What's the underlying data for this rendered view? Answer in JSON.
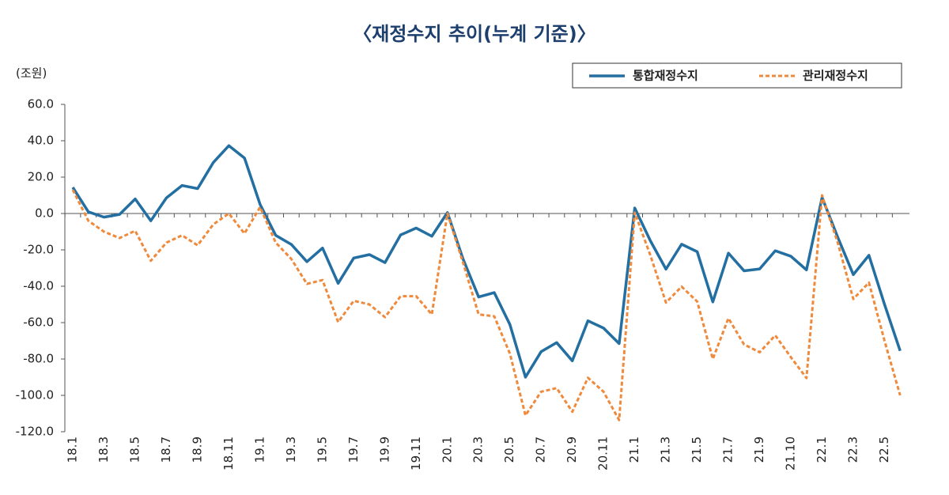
{
  "chart_data": {
    "type": "line",
    "title": "〈재정수지 추이(누계 기준)〉",
    "y_unit": "(조원)",
    "categories": [
      "18.1",
      null,
      "18.3",
      null,
      "18.5",
      null,
      "18.7",
      null,
      "18.9",
      null,
      "18.11",
      null,
      "19.1",
      null,
      "19.3",
      null,
      "19.5",
      null,
      "19.7",
      null,
      "19.9",
      null,
      "19.11",
      null,
      "20.1",
      null,
      "20.3",
      null,
      "20.5",
      null,
      "20.7",
      null,
      "20.9",
      null,
      "20.11",
      null,
      "21.1",
      null,
      "21.3",
      null,
      "21.5",
      null,
      "21.7",
      null,
      "21.9",
      null,
      "21.10",
      null,
      "22.1",
      null,
      "22.3",
      null,
      "22.5",
      null
    ],
    "series": [
      {
        "name": "통합재정수지",
        "color": "#236fa1",
        "dash": false,
        "values": [
          14.4,
          0.9,
          -2,
          -0.5,
          8,
          -4,
          8.6,
          15.4,
          13.7,
          28,
          37.3,
          30.5,
          5,
          -12,
          -17,
          -26.5,
          -19,
          -38.4,
          -24.5,
          -22.6,
          -27,
          -11.8,
          -8,
          -12.5,
          0.5,
          -25,
          -45.9,
          -43.5,
          -61,
          -90,
          -76,
          -71,
          -81,
          -59,
          -63,
          -71.5,
          3,
          -15,
          -30.6,
          -16.9,
          -21,
          -48.6,
          -21.8,
          -31.5,
          -30.5,
          -20.5,
          -23.5,
          -31,
          8.8,
          -13,
          -33.6,
          -23,
          -50,
          -75.5
        ]
      },
      {
        "name": "관리재정수지",
        "color": "#ef8a3c",
        "dash": true,
        "values": [
          13,
          -4,
          -10,
          -13.5,
          -9.5,
          -26,
          -16,
          -12,
          -17.5,
          -6,
          0,
          -11,
          3.5,
          -16,
          -25,
          -38.7,
          -36.6,
          -59.7,
          -48,
          -50,
          -57,
          -45.5,
          -45.5,
          -55.5,
          0,
          -27,
          -55.5,
          -56.5,
          -77,
          -111,
          -98,
          -96,
          -109,
          -90.3,
          -98,
          -113.6,
          0.5,
          -23,
          -49,
          -40.2,
          -48.4,
          -80,
          -57.6,
          -72,
          -76.3,
          -67,
          -79,
          -90.5,
          10,
          -16,
          -47,
          -38,
          -70,
          -100
        ]
      }
    ],
    "ylim": [
      -120,
      60
    ],
    "yticks": [
      {
        "value": 60,
        "label": "60.0"
      },
      {
        "value": 40,
        "label": "40.0"
      },
      {
        "value": 20,
        "label": "20.0"
      },
      {
        "value": 0,
        "label": "0.0"
      },
      {
        "value": -20,
        "label": "-20.0"
      },
      {
        "value": -40,
        "label": "-40.0"
      },
      {
        "value": -60,
        "label": "-60.0"
      },
      {
        "value": -80,
        "label": "-80.0"
      },
      {
        "value": -100,
        "label": "-100.0"
      },
      {
        "value": -120,
        "label": "-120.0"
      }
    ]
  }
}
